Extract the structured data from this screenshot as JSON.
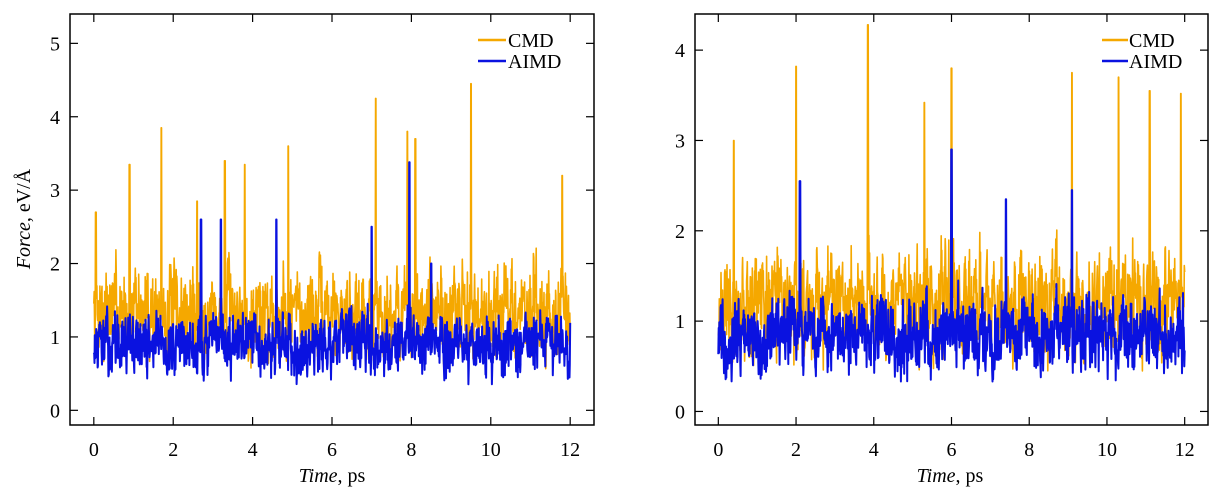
{
  "colors": {
    "CMD": "#f5a800",
    "AIMD": "#0a12e0"
  },
  "chart_data": [
    {
      "type": "line",
      "panel": "left",
      "xlabel_italic": "Time",
      "xlabel_rest": ", ps",
      "ylabel_italic": "Force",
      "ylabel_rest": ", eV/Å",
      "xlim": [
        -0.6,
        12.6
      ],
      "ylim": [
        -0.2,
        5.4
      ],
      "xticks": [
        0,
        2,
        4,
        6,
        8,
        10,
        12
      ],
      "yticks": [
        0,
        1,
        2,
        3,
        4,
        5
      ],
      "legend_position": "top-right",
      "series": [
        {
          "name": "CMD",
          "color": "#f5a800",
          "mean": 1.35,
          "amp": 0.75,
          "spikes": [
            [
              0.05,
              2.7
            ],
            [
              0.9,
              3.35
            ],
            [
              1.7,
              3.85
            ],
            [
              2.6,
              2.85
            ],
            [
              3.3,
              3.4
            ],
            [
              3.8,
              3.35
            ],
            [
              4.9,
              3.6
            ],
            [
              7.1,
              4.25
            ],
            [
              7.9,
              3.8
            ],
            [
              8.1,
              3.7
            ],
            [
              9.5,
              4.45
            ],
            [
              11.8,
              3.2
            ]
          ],
          "seed": 7
        },
        {
          "name": "AIMD",
          "color": "#0a12e0",
          "mean": 0.9,
          "amp": 0.5,
          "spikes": [
            [
              2.7,
              2.6
            ],
            [
              3.2,
              2.6
            ],
            [
              4.6,
              2.6
            ],
            [
              7.95,
              3.38
            ],
            [
              7.0,
              2.5
            ],
            [
              8.5,
              2.0
            ]
          ],
          "seed": 13
        }
      ]
    },
    {
      "type": "line",
      "panel": "right",
      "xlabel_italic": "Time",
      "xlabel_rest": ", ps",
      "xlim": [
        -0.6,
        12.6
      ],
      "ylim": [
        -0.15,
        4.4
      ],
      "xticks": [
        0,
        2,
        4,
        6,
        8,
        10,
        12
      ],
      "yticks": [
        0,
        1,
        2,
        3,
        4
      ],
      "legend_position": "top-right",
      "series": [
        {
          "name": "CMD",
          "color": "#f5a800",
          "mean": 1.2,
          "amp": 0.7,
          "spikes": [
            [
              0.4,
              3.0
            ],
            [
              2.0,
              3.82
            ],
            [
              3.85,
              4.28
            ],
            [
              5.3,
              3.42
            ],
            [
              6.0,
              3.8
            ],
            [
              9.1,
              3.75
            ],
            [
              10.3,
              3.7
            ],
            [
              11.1,
              3.55
            ],
            [
              11.9,
              3.52
            ]
          ],
          "seed": 21
        },
        {
          "name": "AIMD",
          "color": "#0a12e0",
          "mean": 0.85,
          "amp": 0.5,
          "spikes": [
            [
              2.1,
              2.55
            ],
            [
              6.0,
              2.9
            ],
            [
              9.1,
              2.45
            ],
            [
              7.4,
              2.35
            ]
          ],
          "seed": 33
        }
      ]
    }
  ]
}
